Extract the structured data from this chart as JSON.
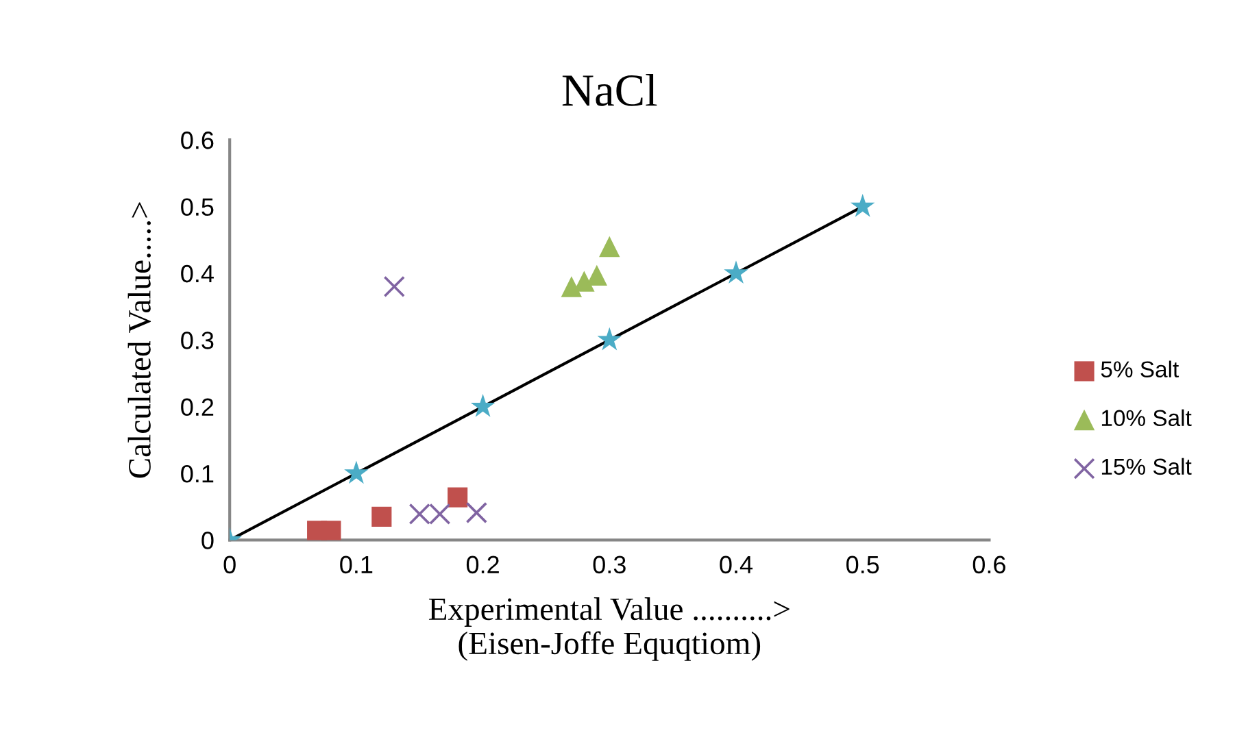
{
  "chart_data": {
    "type": "scatter",
    "title": "NaCl",
    "xlabel": "Experimental Value ..........>\n(Eisen-Joffe Equqtiom)",
    "ylabel": "Calculated Value.....>",
    "xlim": [
      0,
      0.6
    ],
    "xticks": [
      0,
      0.1,
      0.2,
      0.3,
      0.4,
      0.5,
      0.6
    ],
    "ylim": [
      0,
      0.6
    ],
    "yticks": [
      0,
      0.1,
      0.2,
      0.3,
      0.4,
      0.5,
      0.6
    ],
    "grid": false,
    "legend": "right",
    "series": [
      {
        "type": "line",
        "color": "#000000",
        "marker": "none",
        "line_style": "solid",
        "x": [
          0,
          0.5
        ],
        "values": [
          0,
          0.5
        ]
      },
      {
        "color": "#4bacc6",
        "marker": "star",
        "x": [
          0,
          0.1,
          0.2,
          0.3,
          0.4,
          0.5
        ],
        "values": [
          0,
          0.1,
          0.2,
          0.3,
          0.4,
          0.5
        ]
      },
      {
        "name": "5% Salt",
        "color": "#c0504d",
        "marker": "square",
        "x": [
          0.069,
          0.08,
          0.12,
          0.18
        ],
        "values": [
          0.014,
          0.014,
          0.035,
          0.064
        ]
      },
      {
        "name": "10% Salt",
        "color": "#9bbb59",
        "marker": "triangle",
        "x": [
          0.27,
          0.28,
          0.29,
          0.3
        ],
        "values": [
          0.38,
          0.388,
          0.397,
          0.44
        ]
      },
      {
        "name": "15% Salt",
        "color": "#8064a2",
        "marker": "cross",
        "x": [
          0.13,
          0.15,
          0.166,
          0.195
        ],
        "values": [
          0.38,
          0.039,
          0.039,
          0.041
        ]
      }
    ]
  }
}
